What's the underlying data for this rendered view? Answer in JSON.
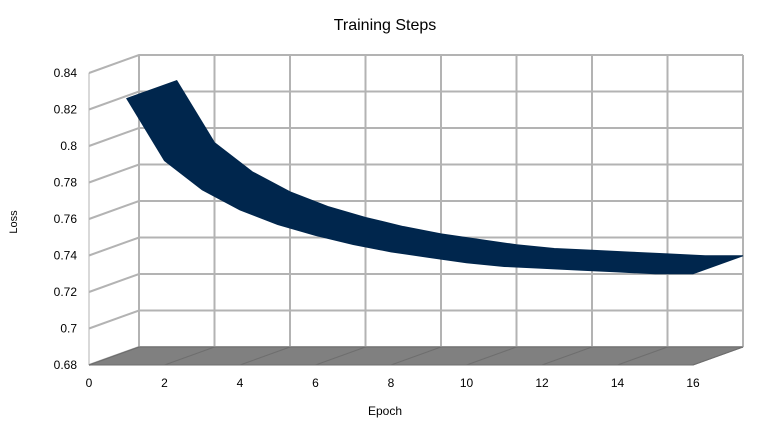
{
  "chart_data": {
    "type": "area",
    "title": "Training Steps",
    "xlabel": "Epoch",
    "ylabel": "Loss",
    "x_ticks": [
      0,
      2,
      4,
      6,
      8,
      10,
      12,
      14,
      16
    ],
    "y_ticks": [
      0.68,
      0.7,
      0.72,
      0.74,
      0.76,
      0.78,
      0.8,
      0.82,
      0.84
    ],
    "xlim": [
      0,
      16
    ],
    "ylim": [
      0.68,
      0.84
    ],
    "grid": true,
    "three_d": true,
    "x": [
      1,
      2,
      3,
      4,
      5,
      6,
      7,
      8,
      9,
      10,
      11,
      12,
      13,
      14,
      15,
      16
    ],
    "series": [
      {
        "values": [
          0.826,
          0.792,
          0.776,
          0.765,
          0.757,
          0.751,
          0.746,
          0.742,
          0.739,
          0.736,
          0.734,
          0.733,
          0.732,
          0.731,
          0.73,
          0.73
        ]
      }
    ],
    "colors": {
      "series": "#00264d",
      "floor": "#808080",
      "grid": "#b3b3b3",
      "axis": "#b3b3b3"
    }
  }
}
